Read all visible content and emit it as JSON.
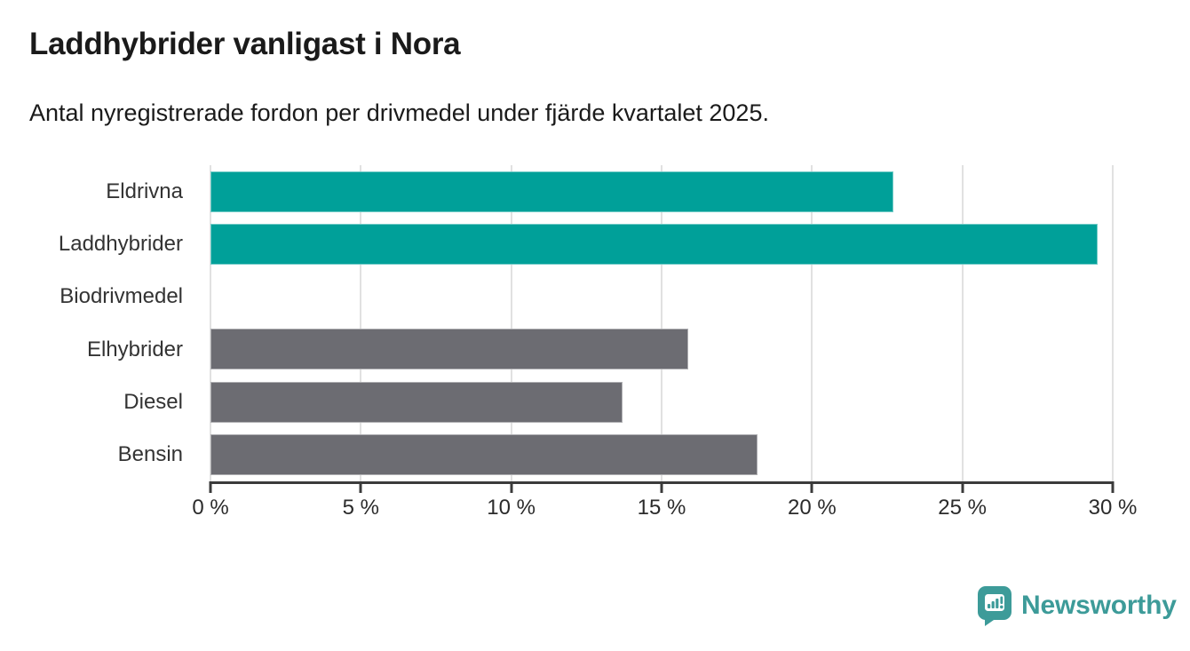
{
  "header": {
    "title": "Laddhybrider vanligast i Nora",
    "subtitle": "Antal nyregistrerade fordon per drivmedel under fjärde kvartalet 2025."
  },
  "chart_data": {
    "type": "bar",
    "orientation": "horizontal",
    "title": "Laddhybrider vanligast i Nora",
    "subtitle": "Antal nyregistrerade fordon per drivmedel under fjärde kvartalet 2025.",
    "categories": [
      "Eldrivna",
      "Laddhybrider",
      "Biodrivmedel",
      "Elhybrider",
      "Diesel",
      "Bensin"
    ],
    "values": [
      22.7,
      29.5,
      0,
      15.9,
      13.7,
      18.2
    ],
    "unit": "%",
    "bar_colors": [
      "#00a099",
      "#00a099",
      "#6c6c72",
      "#6c6c72",
      "#6c6c72",
      "#6c6c72"
    ],
    "highlight_color": "#00a099",
    "default_color": "#6c6c72",
    "xlabel": "",
    "ylabel": "",
    "xlim": [
      0,
      30
    ],
    "x_ticks": [
      0,
      5,
      10,
      15,
      20,
      25,
      30
    ],
    "x_tick_labels": [
      "0 %",
      "5 %",
      "10 %",
      "15 %",
      "20 %",
      "25 %",
      "30 %"
    ],
    "grid": true,
    "gridline_color": "#e1e1e1",
    "axis_color": "#3b3b3b",
    "legend": "none"
  },
  "footer": {
    "brand": "Newsworthy",
    "brand_color": "#3d9b99",
    "logo_icon": "newsworthy-pin-chart-icon"
  }
}
